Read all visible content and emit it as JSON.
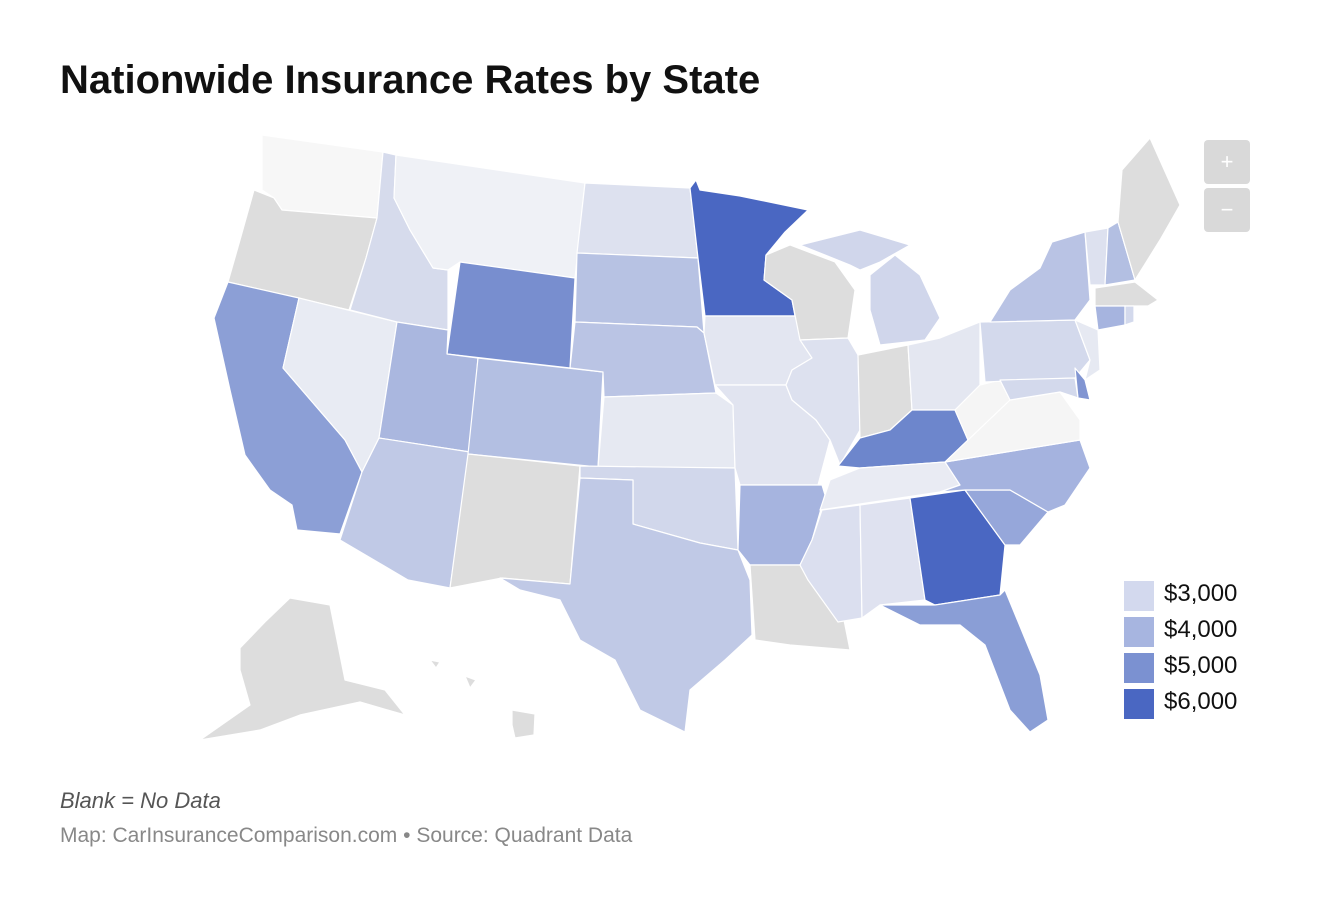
{
  "header": {
    "title": "Nationwide Insurance Rates by State"
  },
  "zoom": {
    "in_label": "+",
    "out_label": "−"
  },
  "legend": {
    "items": [
      {
        "label": "$3,000",
        "color": "#d3d9ee"
      },
      {
        "label": "$4,000",
        "color": "#a7b5e0"
      },
      {
        "label": "$5,000",
        "color": "#7b91d1"
      },
      {
        "label": "$6,000",
        "color": "#4a67c2"
      }
    ]
  },
  "colors": {
    "no_data": "#dddddd",
    "light_gray": "#f5f5f5",
    "border": "#ffffff",
    "lightest": "#eaecf3"
  },
  "footer": {
    "note": "Blank = No Data",
    "source": "Map: CarInsuranceComparison.com • Source: Quadrant Data"
  },
  "chart_data": {
    "type": "choropleth",
    "title": "Nationwide Insurance Rates by State",
    "legend_placement": "bottom-right",
    "scale_stops": [
      "$3,000",
      "$4,000",
      "$5,000",
      "$6,000"
    ],
    "states": [
      {
        "state": "WA",
        "color": "#f7f7f7"
      },
      {
        "state": "OR",
        "color": "#dddddd"
      },
      {
        "state": "CA",
        "color": "#8c9fd6"
      },
      {
        "state": "NV",
        "color": "#e8ebf3"
      },
      {
        "state": "ID",
        "color": "#d6dbec"
      },
      {
        "state": "MT",
        "color": "#eff1f6"
      },
      {
        "state": "WY",
        "color": "#788ecf"
      },
      {
        "state": "UT",
        "color": "#aab7df"
      },
      {
        "state": "AZ",
        "color": "#c0c9e6"
      },
      {
        "state": "CO",
        "color": "#b3bfe2"
      },
      {
        "state": "NM",
        "color": "#dddddd"
      },
      {
        "state": "ND",
        "color": "#dde1ef"
      },
      {
        "state": "SD",
        "color": "#b7c2e3"
      },
      {
        "state": "NE",
        "color": "#bac4e4"
      },
      {
        "state": "KS",
        "color": "#e6e9f2"
      },
      {
        "state": "OK",
        "color": "#d1d7eb"
      },
      {
        "state": "TX",
        "color": "#c0c9e6"
      },
      {
        "state": "MN",
        "color": "#4a67c2"
      },
      {
        "state": "IA",
        "color": "#e3e6f1"
      },
      {
        "state": "MO",
        "color": "#e1e4f0"
      },
      {
        "state": "AR",
        "color": "#a6b4df"
      },
      {
        "state": "LA",
        "color": "#dddddd"
      },
      {
        "state": "WI",
        "color": "#dddddd"
      },
      {
        "state": "IL",
        "color": "#dde1ef"
      },
      {
        "state": "MI",
        "color": "#d0d6eb"
      },
      {
        "state": "IN",
        "color": "#dddddd"
      },
      {
        "state": "OH",
        "color": "#e4e7f1"
      },
      {
        "state": "KY",
        "color": "#6d86cc"
      },
      {
        "state": "TN",
        "color": "#e9ebf3"
      },
      {
        "state": "MS",
        "color": "#dbdfef"
      },
      {
        "state": "AL",
        "color": "#dfe2f0"
      },
      {
        "state": "GA",
        "color": "#4a67c2"
      },
      {
        "state": "FL",
        "color": "#8a9ed6"
      },
      {
        "state": "SC",
        "color": "#96a7da"
      },
      {
        "state": "NC",
        "color": "#a5b3df"
      },
      {
        "state": "VA",
        "color": "#f5f5f5"
      },
      {
        "state": "WV",
        "color": "#f5f5f5"
      },
      {
        "state": "PA",
        "color": "#d3d9ec"
      },
      {
        "state": "NY",
        "color": "#b9c3e4"
      },
      {
        "state": "VT",
        "color": "#dde1ef"
      },
      {
        "state": "NH",
        "color": "#b3bfe2"
      },
      {
        "state": "ME",
        "color": "#dddddd"
      },
      {
        "state": "MA",
        "color": "#dddddd"
      },
      {
        "state": "CT",
        "color": "#a6b4df"
      },
      {
        "state": "RI",
        "color": "#d3d9ec"
      },
      {
        "state": "NJ",
        "color": "#e6e9f2"
      },
      {
        "state": "DE",
        "color": "#8195d2"
      },
      {
        "state": "MD",
        "color": "#d3d9ec"
      },
      {
        "state": "AK",
        "color": "#dddddd"
      },
      {
        "state": "HI",
        "color": "#dddddd"
      }
    ]
  }
}
